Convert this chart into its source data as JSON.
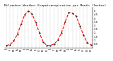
{
  "title": "Milwaukee Weather Evapotranspiration per Month (Inches)",
  "months": [
    "J",
    "F",
    "M",
    "A",
    "M",
    "J",
    "J",
    "A",
    "S",
    "O",
    "N",
    "D",
    "J",
    "F",
    "M",
    "A",
    "M",
    "J",
    "J",
    "A",
    "S",
    "O",
    "N",
    "D"
  ],
  "values": [
    0.3,
    0.4,
    0.9,
    1.8,
    3.2,
    4.5,
    5.0,
    4.6,
    3.4,
    2.0,
    0.8,
    0.3,
    0.3,
    0.5,
    1.0,
    2.0,
    3.5,
    4.8,
    4.7,
    4.3,
    3.0,
    1.7,
    0.7,
    0.4
  ],
  "line_color": "#ff0000",
  "background_color": "#ffffff",
  "grid_color": "#888888",
  "ylim": [
    0,
    5.5
  ],
  "yticks": [
    0.5,
    1.0,
    1.5,
    2.0,
    2.5,
    3.0,
    3.5,
    4.0,
    4.5,
    5.0
  ],
  "ytick_labels": [
    "0.5",
    "1",
    "1.5",
    "2",
    "2.5",
    "3",
    "3.5",
    "4",
    "4.5",
    "5"
  ],
  "title_fontsize": 3.2,
  "tick_fontsize": 2.8,
  "line_width": 0.8
}
